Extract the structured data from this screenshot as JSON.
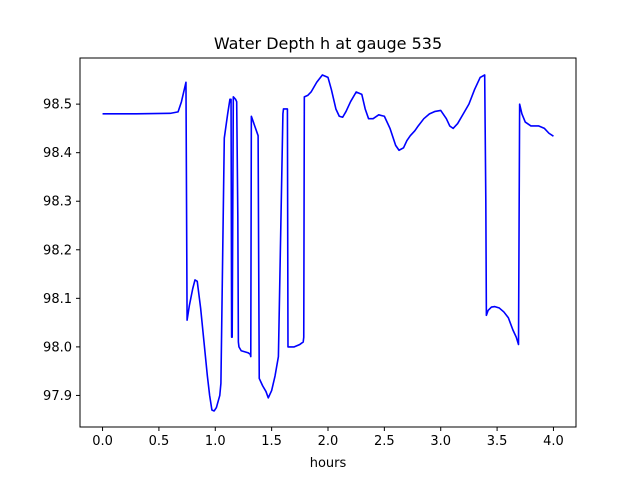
{
  "chart_data": {
    "type": "line",
    "title": "Water Depth h at gauge 535",
    "xlabel": "hours",
    "ylabel": "",
    "xlim": [
      -0.2,
      4.2
    ],
    "ylim": [
      97.835,
      98.595
    ],
    "xticks": [
      0.0,
      0.5,
      1.0,
      1.5,
      2.0,
      2.5,
      3.0,
      3.5,
      4.0
    ],
    "xtick_labels": [
      "0.0",
      "0.5",
      "1.0",
      "1.5",
      "2.0",
      "2.5",
      "3.0",
      "3.5",
      "4.0"
    ],
    "yticks": [
      97.9,
      98.0,
      98.1,
      98.2,
      98.3,
      98.4,
      98.5
    ],
    "ytick_labels": [
      "97.9",
      "98.0",
      "98.1",
      "98.2",
      "98.3",
      "98.4",
      "98.5"
    ],
    "grid": false,
    "series": [
      {
        "color": "#0000ff",
        "x": [
          0.0,
          0.3,
          0.6,
          0.67,
          0.7,
          0.72,
          0.74,
          0.745,
          0.75,
          0.77,
          0.8,
          0.82,
          0.84,
          0.87,
          0.9,
          0.93,
          0.95,
          0.97,
          0.99,
          1.01,
          1.04,
          1.05,
          1.08,
          1.11,
          1.13,
          1.14,
          1.145,
          1.15,
          1.16,
          1.18,
          1.19,
          1.2,
          1.205,
          1.21,
          1.23,
          1.26,
          1.29,
          1.31,
          1.315,
          1.32,
          1.35,
          1.38,
          1.385,
          1.39,
          1.42,
          1.45,
          1.47,
          1.5,
          1.53,
          1.56,
          1.6,
          1.605,
          1.61,
          1.64,
          1.645,
          1.65,
          1.7,
          1.75,
          1.78,
          1.785,
          1.79,
          1.82,
          1.85,
          1.9,
          1.95,
          2.0,
          2.03,
          2.07,
          2.1,
          2.13,
          2.16,
          2.2,
          2.25,
          2.3,
          2.33,
          2.36,
          2.4,
          2.45,
          2.5,
          2.55,
          2.6,
          2.63,
          2.67,
          2.7,
          2.73,
          2.77,
          2.8,
          2.85,
          2.9,
          2.95,
          3.0,
          3.05,
          3.08,
          3.11,
          3.15,
          3.2,
          3.25,
          3.3,
          3.35,
          3.39,
          3.4,
          3.405,
          3.42,
          3.45,
          3.48,
          3.52,
          3.56,
          3.6,
          3.64,
          3.67,
          3.69,
          3.695,
          3.7,
          3.72,
          3.75,
          3.8,
          3.87,
          3.92,
          3.96,
          4.0
        ],
        "y": [
          98.48,
          98.48,
          98.481,
          98.484,
          98.505,
          98.525,
          98.545,
          98.3,
          98.055,
          98.085,
          98.12,
          98.138,
          98.135,
          98.08,
          98.01,
          97.94,
          97.9,
          97.87,
          97.868,
          97.875,
          97.9,
          97.925,
          98.43,
          98.48,
          98.51,
          98.51,
          98.02,
          98.02,
          98.515,
          98.51,
          98.505,
          98.27,
          98.01,
          98.0,
          97.992,
          97.99,
          97.988,
          97.985,
          97.98,
          98.475,
          98.455,
          98.435,
          98.18,
          97.935,
          97.92,
          97.908,
          97.895,
          97.91,
          97.94,
          97.98,
          98.48,
          98.49,
          98.49,
          98.49,
          98.0,
          98.0,
          98.0,
          98.005,
          98.01,
          98.02,
          98.515,
          98.518,
          98.525,
          98.545,
          98.56,
          98.555,
          98.53,
          98.49,
          98.475,
          98.473,
          98.485,
          98.505,
          98.525,
          98.52,
          98.49,
          98.47,
          98.47,
          98.478,
          98.475,
          98.45,
          98.415,
          98.405,
          98.41,
          98.425,
          98.435,
          98.445,
          98.455,
          98.47,
          98.48,
          98.485,
          98.487,
          98.47,
          98.455,
          98.45,
          98.46,
          98.48,
          98.5,
          98.53,
          98.555,
          98.56,
          98.3,
          98.065,
          98.075,
          98.082,
          98.083,
          98.08,
          98.072,
          98.06,
          98.035,
          98.02,
          98.005,
          98.25,
          98.5,
          98.48,
          98.463,
          98.455,
          98.455,
          98.45,
          98.44,
          98.434
        ]
      }
    ]
  }
}
